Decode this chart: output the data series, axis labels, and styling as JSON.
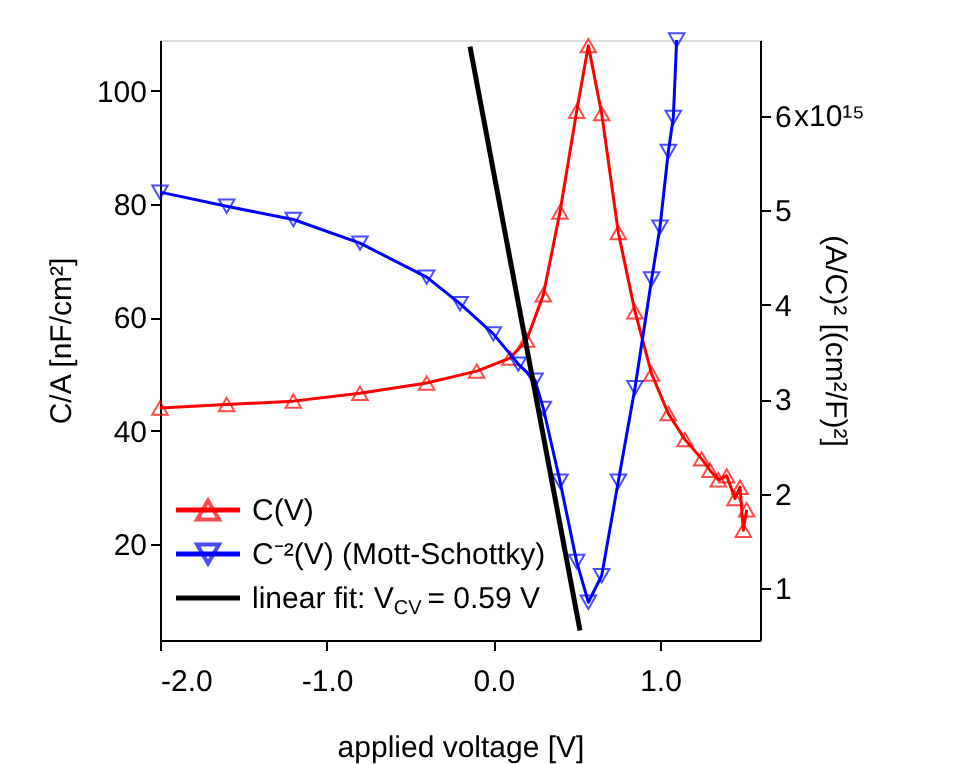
{
  "chart_data": {
    "type": "line",
    "xlabel": "applied voltage [V]",
    "ylabel": "C/A [nF/cm²]",
    "y2label": "(A/C)² [(cm²/F)²]",
    "xlim": [
      -2.0,
      1.6
    ],
    "xticks": [
      {
        "value": -2,
        "label": "-2.0"
      },
      {
        "value": -1,
        "label": "-1.0"
      },
      {
        "value": 0,
        "label": "0.0"
      },
      {
        "value": 1,
        "label": "1.0"
      }
    ],
    "ylim": [
      3,
      109
    ],
    "yticks": [
      20,
      40,
      60,
      80,
      100
    ],
    "y2lim": [
      0.45,
      6.8
    ],
    "y2ticks": [
      1,
      2,
      3,
      4,
      5,
      6
    ],
    "annotations": [
      "x10¹⁵"
    ],
    "grid": false,
    "legend": "bottom left",
    "series": [
      {
        "name": "C(V)",
        "color": "#ff0000",
        "marker": "triangle",
        "axis": "y",
        "x": [
          -2.0,
          -1.6,
          -1.2,
          -0.8,
          -0.4,
          -0.1,
          0.1,
          0.2,
          0.3,
          0.4,
          0.5,
          0.57,
          0.65,
          0.75,
          0.85,
          0.95,
          1.05,
          1.15,
          1.25,
          1.3,
          1.35,
          1.4,
          1.45,
          1.48,
          1.5,
          1.52
        ],
        "values": [
          44,
          44.6,
          45.2,
          46.6,
          48.4,
          50.5,
          52.8,
          56,
          64,
          78.6,
          96.4,
          108,
          96,
          75,
          61,
          50,
          43,
          38.4,
          35,
          33,
          31.3,
          32,
          28,
          30,
          22.4,
          26
        ]
      },
      {
        "name": "C⁻²(V) (Mott-Schottky)",
        "color": "#0000ff",
        "marker": "triangle",
        "axis": "y2",
        "x": [
          -2.0,
          -1.6,
          -1.2,
          -0.8,
          -0.4,
          -0.2,
          0.0,
          0.15,
          0.25,
          0.3,
          0.4,
          0.5,
          0.57,
          0.65,
          0.75,
          0.85,
          0.95,
          1.0,
          1.05,
          1.08,
          1.1
        ],
        "values": [
          5.19,
          5.04,
          4.9,
          4.65,
          4.29,
          4.01,
          3.69,
          3.37,
          3.2,
          2.9,
          2.13,
          1.28,
          0.85,
          1.13,
          2.13,
          3.12,
          4.27,
          4.82,
          5.62,
          5.98,
          6.8
        ]
      },
      {
        "name": "linear fit: V$_{CV}$ = 0.59 V",
        "color": "#000000",
        "marker": "none",
        "axis": "y2",
        "x": [
          -0.14,
          0.52
        ],
        "values": [
          6.73,
          0.55
        ]
      }
    ]
  }
}
